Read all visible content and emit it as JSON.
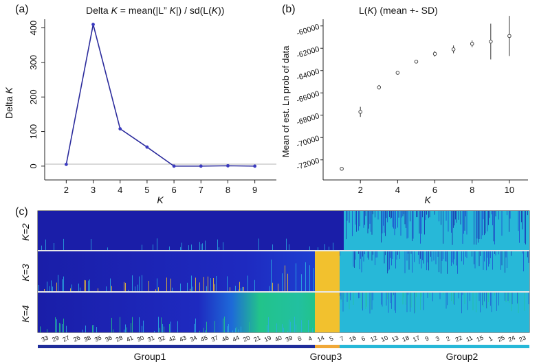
{
  "panels": {
    "a_letter": "(a)",
    "b_letter": "(b)",
    "c_letter": "(c)"
  },
  "chart_data": [
    {
      "type": "line",
      "title_parts": [
        "Delta ",
        "K",
        " = mean(|L” ",
        "K",
        "|) / sd(L(",
        "K",
        "))"
      ],
      "xlabel": "K",
      "ylabel_parts": [
        "Delta ",
        "K"
      ],
      "x": [
        2,
        3,
        4,
        5,
        6,
        7,
        8,
        9
      ],
      "y": [
        5,
        410,
        108,
        55,
        0,
        0,
        1,
        0
      ],
      "xticks": [
        "2",
        "3",
        "4",
        "5",
        "6",
        "7",
        "8",
        "9"
      ],
      "yticks": [
        0,
        100,
        200,
        300,
        400
      ],
      "xlim": [
        1.2,
        9.8
      ],
      "ylim": [
        -40,
        425
      ],
      "reference_line_y": 0,
      "colors": {
        "line": "#2b2b9c",
        "point": "#3b3bc0"
      }
    },
    {
      "type": "scatter",
      "title_parts": [
        "L(",
        "K",
        ") (mean +- SD)"
      ],
      "xlabel": "K",
      "ylabel": "Mean of est. Ln prob of data",
      "x": [
        1,
        2,
        3,
        4,
        5,
        6,
        7,
        8,
        9,
        10
      ],
      "y": [
        -72800,
        -67700,
        -65500,
        -64200,
        -63200,
        -62500,
        -62100,
        -61600,
        -61400,
        -60900
      ],
      "sd": [
        0,
        450,
        200,
        120,
        120,
        250,
        350,
        300,
        1600,
        1800
      ],
      "xticks": [
        2,
        4,
        6,
        8,
        10
      ],
      "yticks": [
        -60000,
        -62000,
        -64000,
        -66000,
        -68000,
        -70000,
        -72000
      ],
      "ytick_labels": [
        "-60000",
        "-62000",
        "-64000",
        "-66000",
        "-68000",
        "-70000",
        "-72000"
      ],
      "xlim": [
        0,
        11
      ],
      "ylim": [
        -73800,
        -59400
      ]
    },
    {
      "type": "heatmap",
      "rows": [
        "K=2",
        "K=3",
        "K=4"
      ],
      "sample_labels": [
        "33",
        "29",
        "27",
        "26",
        "38",
        "35",
        "36",
        "28",
        "41",
        "30",
        "31",
        "32",
        "42",
        "43",
        "34",
        "45",
        "37",
        "46",
        "44",
        "20",
        "21",
        "19",
        "40",
        "39",
        "8",
        "4",
        "14",
        "5",
        "7",
        "16",
        "6",
        "12",
        "10",
        "13",
        "18",
        "17",
        "9",
        "3",
        "2",
        "22",
        "11",
        "15",
        "1",
        "25",
        "24",
        "23"
      ],
      "groups": [
        "Group1",
        "Group3",
        "Group2"
      ],
      "colors": {
        "dark_blue": "#1a1ea8",
        "blue": "#1e3fd0",
        "light_blue": "#2aaee0",
        "cyan": "#27b8d8",
        "green": "#22c38a",
        "yellow": "#f2c12e",
        "orange": "#e8a22a",
        "group_bar_blue": "#1f2d9a",
        "group_bar_orange": "#f0a838"
      }
    }
  ]
}
